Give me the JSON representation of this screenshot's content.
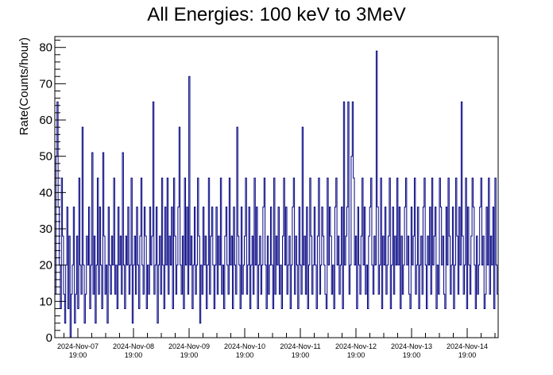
{
  "chart_data": {
    "type": "line",
    "title": "All Energies:  100 keV to 3MeV",
    "ylabel": "Rate(Counts/hour)",
    "xlabel": "",
    "ylim": [
      0,
      83
    ],
    "yticks": [
      0,
      10,
      20,
      30,
      40,
      50,
      60,
      70,
      80
    ],
    "xlim": [
      "2024-Nov-07 00:00",
      "2024-Nov-15 03:00"
    ],
    "xticks": [
      {
        "date": "2024-Nov-07",
        "time": "19:00"
      },
      {
        "date": "2024-Nov-08",
        "time": "19:00"
      },
      {
        "date": "2024-Nov-09",
        "time": "19:00"
      },
      {
        "date": "2024-Nov-10",
        "time": "19:00"
      },
      {
        "date": "2024-Nov-11",
        "time": "19:00"
      },
      {
        "date": "2024-Nov-12",
        "time": "19:00"
      },
      {
        "date": "2024-Nov-13",
        "time": "19:00"
      },
      {
        "date": "2024-Nov-14",
        "time": "19:00"
      }
    ],
    "color": "#000080",
    "grid": false,
    "step": true,
    "series": [
      {
        "values": [
          12,
          50,
          65,
          36,
          20,
          8,
          44,
          28,
          12,
          4,
          20,
          36,
          8,
          28,
          0,
          12,
          20,
          36,
          4,
          12,
          28,
          8,
          44,
          20,
          12,
          58,
          20,
          4,
          12,
          28,
          20,
          36,
          8,
          20,
          51,
          12,
          28,
          4,
          20,
          44,
          12,
          36,
          20,
          8,
          51,
          28,
          12,
          20,
          4,
          36,
          20,
          12,
          28,
          20,
          44,
          12,
          20,
          8,
          36,
          20,
          28,
          12,
          51,
          20,
          8,
          28,
          20,
          36,
          12,
          20,
          44,
          4,
          20,
          28,
          12,
          36,
          20,
          8,
          28,
          44,
          20,
          12,
          36,
          28,
          8,
          20,
          12,
          36,
          20,
          28,
          65,
          12,
          20,
          36,
          4,
          20,
          28,
          12,
          44,
          20,
          8,
          36,
          20,
          44,
          12,
          28,
          20,
          36,
          8,
          44,
          28,
          12,
          20,
          36,
          58,
          20,
          12,
          28,
          8,
          44,
          20,
          36,
          12,
          72,
          20,
          28,
          8,
          20,
          36,
          12,
          20,
          44,
          28,
          4,
          20,
          12,
          36,
          20,
          28,
          8,
          20,
          44,
          12,
          28,
          36,
          20,
          8,
          20,
          36,
          12,
          28,
          20,
          44,
          12,
          20,
          8,
          28,
          36,
          20,
          12,
          44,
          20,
          28,
          8,
          36,
          20,
          12,
          58,
          28,
          20,
          8,
          36,
          12,
          20,
          28,
          44,
          12,
          20,
          36,
          8,
          20,
          28,
          12,
          44,
          20,
          36,
          8,
          20,
          28,
          12,
          20,
          36,
          44,
          20,
          8,
          28,
          12,
          20,
          36,
          20,
          8,
          44,
          12,
          28,
          20,
          36,
          12,
          20,
          8,
          28,
          44,
          20,
          36,
          12,
          20,
          28,
          8,
          20,
          36,
          44,
          12,
          28,
          20,
          8,
          36,
          20,
          12,
          58,
          20,
          28,
          12,
          36,
          8,
          20,
          44,
          28,
          12,
          20,
          36,
          20,
          8,
          28,
          44,
          12,
          20,
          36,
          28,
          20,
          12,
          8,
          44,
          20,
          36,
          28,
          12,
          20,
          8,
          36,
          44,
          20,
          28,
          12,
          20,
          36,
          8,
          65,
          20,
          28,
          36,
          65,
          12,
          20,
          50,
          65,
          44,
          20,
          28,
          8,
          36,
          20,
          12,
          28,
          44,
          20,
          36,
          12,
          20,
          8,
          28,
          36,
          44,
          20,
          12,
          28,
          20,
          79,
          36,
          12,
          20,
          44,
          8,
          28,
          20,
          36,
          12,
          20,
          28,
          44,
          8,
          20,
          36,
          12,
          28,
          20,
          44,
          20,
          36,
          8,
          28,
          12,
          20,
          36,
          44,
          20,
          28,
          12,
          8,
          36,
          20,
          28,
          44,
          12,
          20,
          36,
          8,
          20,
          28,
          12,
          36,
          44,
          20,
          8,
          28,
          20,
          36,
          12,
          44,
          20,
          28,
          36,
          8,
          20,
          12,
          44,
          36,
          20,
          28,
          12,
          8,
          36,
          20,
          44,
          28,
          12,
          20,
          36,
          8,
          20,
          44,
          28,
          12,
          36,
          20,
          65,
          28,
          12,
          20,
          44,
          8,
          36,
          20,
          12,
          28,
          44,
          36,
          20,
          8,
          28,
          12,
          20,
          36,
          44,
          20,
          28,
          8,
          12,
          36,
          20,
          44,
          12,
          28,
          20,
          36,
          8,
          44,
          20,
          12
        ]
      }
    ]
  }
}
